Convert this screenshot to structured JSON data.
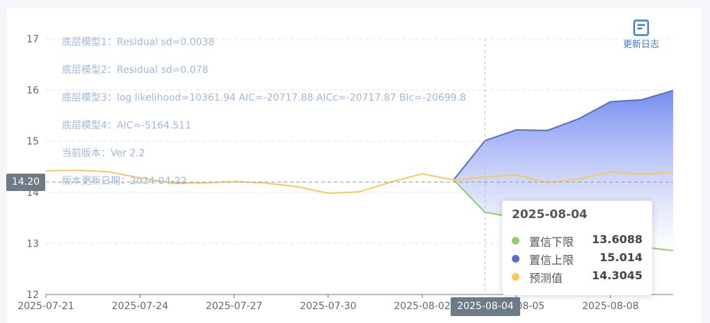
{
  "changelog": {
    "label": "更新日志",
    "icon": "document-icon",
    "color": "#3a7bd5"
  },
  "info_lines": [
    "底层模型1：Residual sd=0.0038",
    "底层模型2：Residual sd=0.078",
    "底层模型3：log likelihood=10361.94 AIC=-20717.88 AICc=-20717.87 BIc=-20699.8",
    "底层模型4：AIC=-5164.511",
    "当前版本：Ver 2.2",
    "版本更新日期：2024-04-22"
  ],
  "crosshair": {
    "y_label": "14.20",
    "x_label": "2025-08-04"
  },
  "tooltip": {
    "title": "2025-08-04",
    "rows": [
      {
        "name": "置信下限",
        "value": "13.6088",
        "color": "#91cc75"
      },
      {
        "name": "置信上限",
        "value": "15.014",
        "color": "#5470c6"
      },
      {
        "name": "预测值",
        "value": "14.3045",
        "color": "#fac858"
      }
    ]
  },
  "chart_data": {
    "type": "line",
    "x": [
      "2025-07-21",
      "2025-07-22",
      "2025-07-23",
      "2025-07-24",
      "2025-07-25",
      "2025-07-26",
      "2025-07-27",
      "2025-07-28",
      "2025-07-29",
      "2025-07-30",
      "2025-07-31",
      "2025-08-01",
      "2025-08-02",
      "2025-08-03",
      "2025-08-04",
      "2025-08-05",
      "2025-08-06",
      "2025-08-07",
      "2025-08-08",
      "2025-08-09",
      "2025-08-10"
    ],
    "x_tick_labels": [
      "2025-07-21",
      "2025-07-24",
      "2025-07-27",
      "2025-07-30",
      "2025-08-02",
      "2025-08-05",
      "2025-08-08"
    ],
    "ylim": [
      12,
      17
    ],
    "y_ticks": [
      12,
      13,
      14,
      15,
      16,
      17
    ],
    "grid": true,
    "series": [
      {
        "name": "置信下限",
        "color": "#91cc75",
        "values": [
          null,
          null,
          null,
          null,
          null,
          null,
          null,
          null,
          null,
          null,
          null,
          null,
          null,
          14.24,
          13.61,
          13.5,
          13.1,
          13.1,
          13.0,
          12.93,
          12.86
        ]
      },
      {
        "name": "置信上限",
        "color": "#5470c6",
        "values": [
          null,
          null,
          null,
          null,
          null,
          null,
          null,
          null,
          null,
          null,
          null,
          null,
          null,
          14.24,
          15.01,
          15.22,
          15.21,
          15.44,
          15.77,
          15.81,
          15.99
        ]
      },
      {
        "name": "预测值",
        "color": "#fac858",
        "values": [
          14.42,
          14.43,
          14.4,
          14.28,
          14.18,
          14.18,
          14.21,
          14.18,
          14.11,
          13.98,
          14.01,
          14.2,
          14.36,
          14.24,
          14.3,
          14.34,
          14.19,
          14.26,
          14.4,
          14.35,
          14.39
        ]
      }
    ]
  }
}
